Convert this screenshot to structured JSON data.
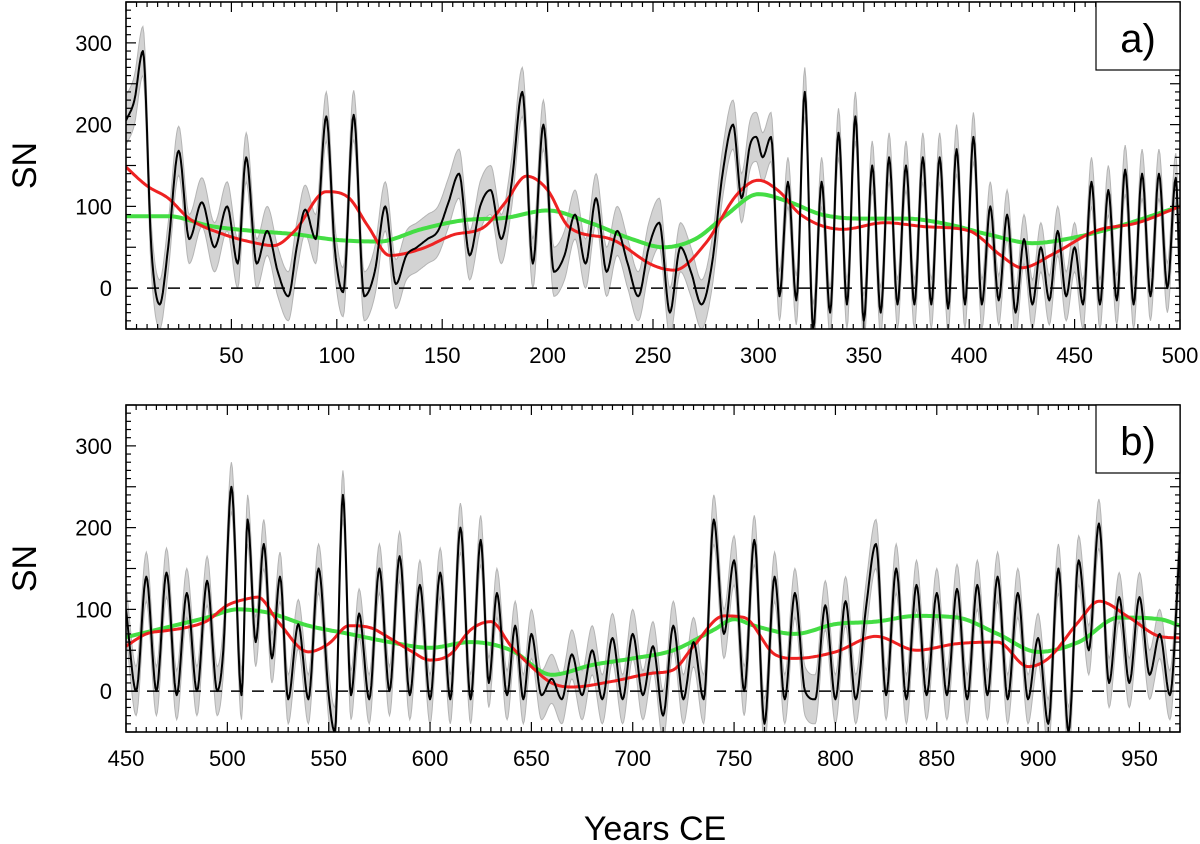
{
  "figure": {
    "xlabel": "Years CE",
    "colors": {
      "reconstruction": "#000000",
      "uncertainty": "#d3d3d3",
      "uncertainty_edge": "#b4b4b4",
      "smooth_short": "#ee2222",
      "smooth_long": "#44dd44"
    }
  },
  "chart_data": [
    {
      "type": "line",
      "panel_label": "a)",
      "ylabel": "SN",
      "xlim": [
        0,
        500
      ],
      "ylim": [
        -50,
        350
      ],
      "xticks": [
        50,
        100,
        150,
        200,
        250,
        300,
        350,
        400,
        450,
        500
      ],
      "yticks": [
        0,
        100,
        200,
        300
      ],
      "reference_line": 0,
      "uncertainty_halfwidth": 30,
      "series": [
        {
          "role": "reconstruction",
          "x": [
            0,
            4,
            8,
            12,
            16,
            20,
            25,
            30,
            36,
            42,
            48,
            53,
            57,
            62,
            67,
            72,
            77,
            81,
            85,
            90,
            95,
            99,
            103,
            108,
            113,
            118,
            123,
            128,
            133,
            138,
            143,
            148,
            153,
            158,
            163,
            168,
            173,
            178,
            183,
            188,
            193,
            198,
            203,
            208,
            213,
            218,
            223,
            228,
            233,
            238,
            243,
            248,
            253,
            258,
            263,
            268,
            273,
            278,
            283,
            288,
            292,
            296,
            299,
            302,
            306,
            310,
            314,
            318,
            322,
            326,
            330,
            334,
            338,
            342,
            346,
            350,
            354,
            358,
            362,
            366,
            370,
            374,
            378,
            382,
            386,
            390,
            394,
            398,
            402,
            406,
            410,
            414,
            418,
            422,
            426,
            430,
            434,
            438,
            442,
            446,
            450,
            454,
            458,
            462,
            466,
            470,
            474,
            478,
            482,
            486,
            490,
            494,
            498,
            500
          ],
          "y": [
            205,
            230,
            290,
            50,
            -20,
            50,
            168,
            60,
            105,
            50,
            100,
            30,
            160,
            30,
            70,
            20,
            -10,
            50,
            96,
            60,
            210,
            50,
            -5,
            212,
            -10,
            20,
            100,
            5,
            40,
            50,
            60,
            70,
            105,
            140,
            40,
            100,
            120,
            60,
            130,
            240,
            30,
            200,
            20,
            40,
            90,
            30,
            110,
            20,
            70,
            30,
            -10,
            50,
            80,
            -30,
            50,
            20,
            -20,
            30,
            140,
            200,
            110,
            175,
            185,
            160,
            185,
            -10,
            130,
            -15,
            240,
            -50,
            130,
            -30,
            190,
            -20,
            210,
            -40,
            150,
            -30,
            160,
            -20,
            150,
            -20,
            160,
            -20,
            160,
            -25,
            170,
            -20,
            185,
            -20,
            100,
            -15,
            90,
            -30,
            60,
            -20,
            50,
            -15,
            70,
            -10,
            50,
            -20,
            130,
            -20,
            120,
            -15,
            145,
            -20,
            140,
            -10,
            140,
            0,
            135,
            0
          ],
          "type": "line"
        },
        {
          "role": "smooth_short",
          "x": [
            0,
            10,
            20,
            30,
            45,
            60,
            70,
            80,
            95,
            105,
            115,
            125,
            140,
            155,
            170,
            180,
            190,
            200,
            210,
            230,
            250,
            260,
            275,
            290,
            300,
            310,
            320,
            340,
            360,
            380,
            400,
            415,
            425,
            440,
            460,
            480,
            500
          ],
          "y": [
            148,
            125,
            110,
            85,
            67,
            56,
            52,
            70,
            118,
            112,
            75,
            40,
            48,
            65,
            75,
            105,
            137,
            120,
            75,
            60,
            28,
            22,
            55,
            115,
            132,
            118,
            90,
            72,
            80,
            75,
            70,
            40,
            25,
            42,
            70,
            80,
            100
          ],
          "type": "line"
        },
        {
          "role": "smooth_long",
          "x": [
            0,
            20,
            40,
            60,
            80,
            100,
            120,
            140,
            160,
            180,
            200,
            220,
            240,
            255,
            270,
            285,
            300,
            315,
            330,
            350,
            370,
            390,
            410,
            430,
            450,
            470,
            500
          ],
          "y": [
            88,
            88,
            76,
            70,
            66,
            59,
            57,
            72,
            83,
            86,
            95,
            80,
            60,
            50,
            60,
            90,
            115,
            105,
            90,
            85,
            85,
            78,
            65,
            55,
            62,
            75,
            100
          ],
          "type": "line"
        }
      ]
    },
    {
      "type": "line",
      "panel_label": "b)",
      "ylabel": "SN",
      "xlim": [
        450,
        970
      ],
      "ylim": [
        -50,
        350
      ],
      "xticks": [
        450,
        500,
        550,
        600,
        650,
        700,
        750,
        800,
        850,
        900,
        950
      ],
      "yticks": [
        0,
        100,
        200,
        300
      ],
      "reference_line": 0,
      "uncertainty_halfwidth": 30,
      "series": [
        {
          "role": "reconstruction",
          "x": [
            450,
            455,
            460,
            465,
            470,
            475,
            480,
            485,
            490,
            495,
            498,
            502,
            507,
            510,
            514,
            518,
            522,
            526,
            530,
            535,
            540,
            545,
            550,
            553,
            557,
            561,
            565,
            570,
            575,
            580,
            585,
            590,
            595,
            600,
            605,
            610,
            615,
            620,
            625,
            629,
            633,
            638,
            642,
            646,
            650,
            655,
            660,
            665,
            670,
            675,
            680,
            685,
            690,
            695,
            700,
            705,
            710,
            715,
            720,
            725,
            730,
            735,
            740,
            745,
            750,
            755,
            760,
            765,
            770,
            775,
            780,
            785,
            790,
            795,
            800,
            805,
            810,
            815,
            820,
            825,
            830,
            835,
            840,
            845,
            850,
            855,
            860,
            865,
            870,
            875,
            880,
            885,
            890,
            895,
            900,
            905,
            910,
            915,
            920,
            925,
            930,
            935,
            940,
            945,
            950,
            955,
            960,
            965,
            970
          ],
          "y": [
            100,
            0,
            140,
            0,
            145,
            -5,
            120,
            0,
            135,
            0,
            50,
            250,
            -5,
            210,
            60,
            180,
            40,
            140,
            -10,
            82,
            -10,
            150,
            -5,
            -50,
            240,
            -5,
            95,
            -10,
            150,
            0,
            165,
            -5,
            130,
            -10,
            145,
            -10,
            200,
            -10,
            185,
            10,
            120,
            -5,
            80,
            -10,
            70,
            -5,
            15,
            -10,
            45,
            -5,
            50,
            -10,
            65,
            -10,
            70,
            -5,
            55,
            -30,
            80,
            -10,
            60,
            -10,
            210,
            70,
            160,
            0,
            185,
            -40,
            140,
            -10,
            120,
            0,
            -10,
            105,
            -10,
            110,
            -10,
            100,
            180,
            -5,
            150,
            -10,
            130,
            -5,
            120,
            -5,
            125,
            -10,
            130,
            -5,
            140,
            -10,
            120,
            -10,
            65,
            -40,
            150,
            -50,
            160,
            50,
            205,
            10,
            115,
            10,
            115,
            20,
            70,
            -5,
            185
          ],
          "type": "line"
        },
        {
          "role": "smooth_short",
          "x": [
            450,
            460,
            470,
            480,
            490,
            500,
            510,
            515,
            525,
            540,
            550,
            560,
            570,
            580,
            590,
            600,
            610,
            620,
            630,
            640,
            650,
            660,
            670,
            690,
            710,
            720,
            730,
            745,
            755,
            770,
            780,
            800,
            820,
            840,
            860,
            880,
            895,
            905,
            920,
            930,
            945,
            960,
            970
          ],
          "y": [
            55,
            70,
            74,
            78,
            86,
            105,
            113,
            115,
            85,
            48,
            58,
            80,
            78,
            65,
            50,
            38,
            45,
            75,
            85,
            55,
            30,
            10,
            5,
            12,
            22,
            26,
            55,
            92,
            90,
            45,
            40,
            48,
            67,
            50,
            58,
            60,
            30,
            40,
            85,
            110,
            90,
            67,
            65
          ],
          "type": "line"
        },
        {
          "role": "smooth_long",
          "x": [
            450,
            470,
            490,
            505,
            520,
            540,
            560,
            580,
            600,
            620,
            640,
            660,
            680,
            700,
            720,
            740,
            750,
            760,
            780,
            800,
            820,
            840,
            860,
            880,
            900,
            920,
            940,
            960,
            970
          ],
          "y": [
            66,
            78,
            90,
            100,
            96,
            80,
            70,
            60,
            53,
            60,
            50,
            20,
            32,
            40,
            50,
            75,
            88,
            80,
            70,
            82,
            85,
            92,
            90,
            70,
            48,
            60,
            90,
            88,
            80
          ],
          "type": "line"
        }
      ]
    }
  ]
}
